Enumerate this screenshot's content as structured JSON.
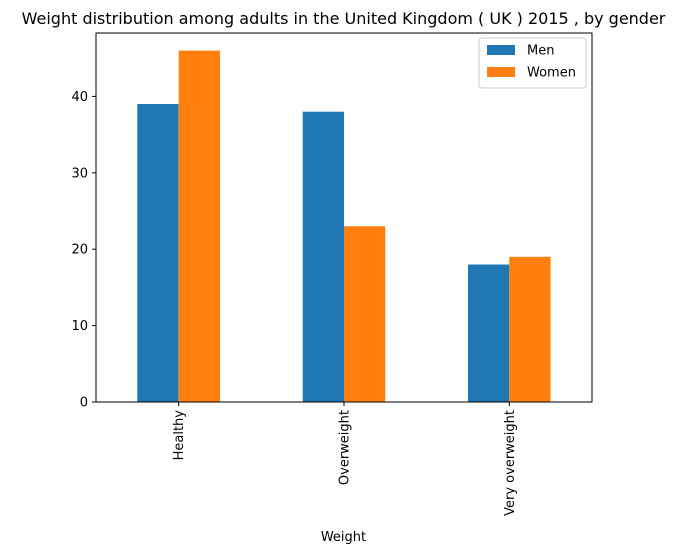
{
  "chart_data": {
    "type": "bar",
    "title": "Weight distribution among adults in the United Kingdom ( UK ) 2015 , by gender",
    "xlabel": "Weight",
    "ylabel": "",
    "categories": [
      "Healthy",
      "Overweight",
      "Very overweight"
    ],
    "series": [
      {
        "name": "Men",
        "color": "#1f77b4",
        "values": [
          39,
          38,
          18
        ]
      },
      {
        "name": "Women",
        "color": "#ff7f0e",
        "values": [
          46,
          23,
          19
        ]
      }
    ],
    "ylim": [
      0,
      48.3
    ],
    "yticks": [
      0,
      10,
      20,
      30,
      40
    ],
    "legend_position": "top-right",
    "grid": false
  }
}
